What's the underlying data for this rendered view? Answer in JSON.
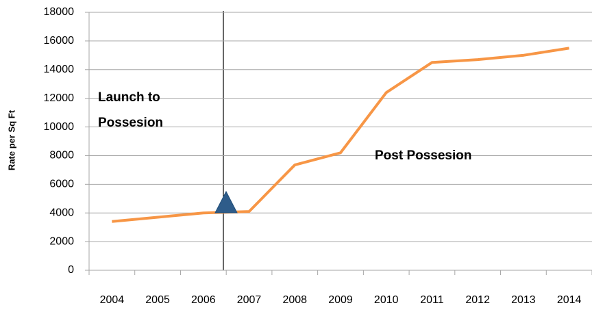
{
  "chart_data": {
    "type": "line",
    "y_label": "Rate per Sq Ft",
    "categories": [
      "2004",
      "2005",
      "2006",
      "2007",
      "2008",
      "2009",
      "2010",
      "2011",
      "2012",
      "2013",
      "2014"
    ],
    "series": [
      {
        "name": "Rate",
        "color": "#f79646",
        "values": [
          3400,
          3700,
          4000,
          4100,
          7350,
          8200,
          12400,
          14500,
          14700,
          15000,
          15500
        ]
      }
    ],
    "ylim": [
      0,
      18000
    ],
    "yticks": [
      0,
      2000,
      4000,
      6000,
      8000,
      10000,
      12000,
      14000,
      16000,
      18000
    ],
    "grid": true,
    "annotations": [
      {
        "lines": [
          "Launch to",
          "Possesion"
        ]
      },
      {
        "lines": [
          "Post Possesion"
        ]
      }
    ]
  }
}
